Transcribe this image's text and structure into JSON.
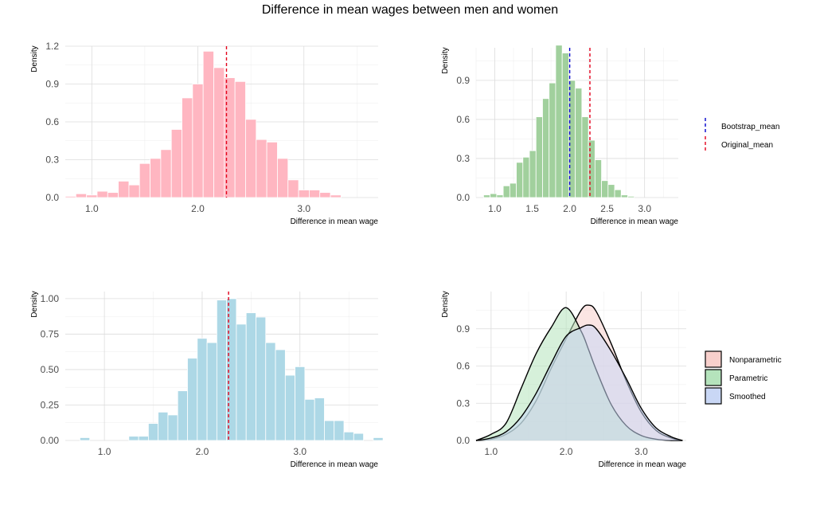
{
  "title": "Difference in mean wages between men and women",
  "colors": {
    "pink_bar": "#ffb6c1",
    "green_bar": "#a1d09d",
    "blue_bar": "#add8e6",
    "bootstrap_mean": "#0000cc",
    "original_mean": "#e3001b",
    "nonparametric_fill": "#f8d0cc",
    "parametric_fill": "#b5e3bc",
    "smoothed_fill": "#c9d7f5"
  },
  "legend_top": {
    "items": [
      {
        "label": "Bootstrap_mean",
        "color": "#0000cc"
      },
      {
        "label": "Original_mean",
        "color": "#e3001b"
      }
    ]
  },
  "legend_bottom": {
    "items": [
      {
        "label": "Nonparametric",
        "color": "#f8d0cc"
      },
      {
        "label": "Parametric",
        "color": "#b5e3bc"
      },
      {
        "label": "Smoothed",
        "color": "#c9d7f5"
      }
    ]
  },
  "chart_data": [
    {
      "type": "bar",
      "subtype": "histogram",
      "xlabel": "Difference in mean wage",
      "ylabel": "Density",
      "xlim": [
        0.75,
        3.7
      ],
      "ylim": [
        0,
        1.2
      ],
      "xticks": [
        1.0,
        2.0,
        3.0
      ],
      "xtick_labels": [
        "1.0",
        "2.0",
        "3.0"
      ],
      "yticks": [
        0,
        0.3,
        0.6,
        0.9,
        1.2
      ],
      "ytick_labels": [
        "0.0",
        "0.3",
        "0.6",
        "0.9",
        "1.2"
      ],
      "bin_start": 0.75,
      "bin_width": 0.1,
      "values": [
        0.01,
        0.03,
        0.02,
        0.05,
        0.04,
        0.13,
        0.1,
        0.27,
        0.31,
        0.38,
        0.54,
        0.79,
        0.9,
        1.16,
        1.03,
        0.95,
        0.92,
        0.62,
        0.46,
        0.44,
        0.31,
        0.14,
        0.06,
        0.06,
        0.04,
        0.02
      ],
      "vlines": [
        {
          "x": 2.27,
          "series": "Original_mean"
        }
      ]
    },
    {
      "type": "bar",
      "subtype": "histogram",
      "xlabel": "Difference in mean wage",
      "ylabel": "Density",
      "xlim": [
        0.75,
        3.45
      ],
      "ylim": [
        0,
        1.15
      ],
      "xticks": [
        1.0,
        1.5,
        2.0,
        2.5,
        3.0
      ],
      "xtick_labels": [
        "1.0",
        "1.5",
        "2.0",
        "2.5",
        "3.0"
      ],
      "yticks": [
        0,
        0.3,
        0.6,
        0.9
      ],
      "ytick_labels": [
        "0.0",
        "0.3",
        "0.6",
        "0.9"
      ],
      "bin_start": 0.85,
      "bin_width": 0.0875,
      "values": [
        0.02,
        0.03,
        0.02,
        0.09,
        0.11,
        0.27,
        0.31,
        0.36,
        0.62,
        0.76,
        0.88,
        1.17,
        1.11,
        0.9,
        0.84,
        0.62,
        0.44,
        0.29,
        0.13,
        0.1,
        0.06,
        0.02,
        0.01
      ],
      "vlines": [
        {
          "x": 2.0,
          "series": "Bootstrap_mean"
        },
        {
          "x": 2.27,
          "series": "Original_mean"
        }
      ]
    },
    {
      "type": "bar",
      "subtype": "histogram",
      "xlabel": "Difference in mean wage",
      "ylabel": "Density",
      "xlim": [
        0.6,
        3.8
      ],
      "ylim": [
        0,
        1.05
      ],
      "xticks": [
        1.0,
        2.0,
        3.0
      ],
      "xtick_labels": [
        "1.0",
        "2.0",
        "3.0"
      ],
      "yticks": [
        0,
        0.25,
        0.5,
        0.75,
        1.0
      ],
      "ytick_labels": [
        "0.00",
        "0.25",
        "0.50",
        "0.75",
        "1.00"
      ],
      "bin_start": 0.75,
      "bin_width": 0.1,
      "values": [
        0.02,
        0.0,
        0.0,
        0.0,
        0.0,
        0.03,
        0.03,
        0.12,
        0.2,
        0.18,
        0.35,
        0.58,
        0.72,
        0.69,
        0.99,
        1.0,
        0.82,
        0.9,
        0.87,
        0.69,
        0.64,
        0.46,
        0.52,
        0.29,
        0.3,
        0.14,
        0.14,
        0.06,
        0.05,
        0.0,
        0.02
      ],
      "vlines": [
        {
          "x": 2.27,
          "series": "Original_mean"
        }
      ]
    },
    {
      "type": "area",
      "subtype": "density",
      "xlabel": "Difference in mean wage",
      "ylabel": "Density",
      "xlim": [
        0.8,
        3.6
      ],
      "ylim": [
        0,
        1.2
      ],
      "xticks": [
        1.0,
        2.0,
        3.0
      ],
      "xtick_labels": [
        "1.0",
        "2.0",
        "3.0"
      ],
      "yticks": [
        0,
        0.3,
        0.6,
        0.9
      ],
      "ytick_labels": [
        "0.0",
        "0.3",
        "0.6",
        "0.9"
      ],
      "x": [
        0.8,
        1.0,
        1.2,
        1.4,
        1.6,
        1.8,
        2.0,
        2.2,
        2.3,
        2.4,
        2.6,
        2.8,
        3.0,
        3.2,
        3.4,
        3.55
      ],
      "series": [
        {
          "name": "Nonparametric",
          "values": [
            0.0,
            0.01,
            0.05,
            0.14,
            0.32,
            0.58,
            0.82,
            1.05,
            1.09,
            1.04,
            0.78,
            0.48,
            0.23,
            0.08,
            0.02,
            0.0
          ]
        },
        {
          "name": "Parametric",
          "values": [
            0.0,
            0.05,
            0.14,
            0.42,
            0.7,
            0.91,
            1.07,
            0.88,
            0.73,
            0.57,
            0.29,
            0.12,
            0.04,
            0.01,
            0.0,
            0.0
          ]
        },
        {
          "name": "Smoothed",
          "values": [
            0.0,
            0.02,
            0.07,
            0.19,
            0.38,
            0.62,
            0.84,
            0.91,
            0.93,
            0.9,
            0.72,
            0.5,
            0.26,
            0.1,
            0.03,
            0.0
          ]
        }
      ]
    }
  ]
}
